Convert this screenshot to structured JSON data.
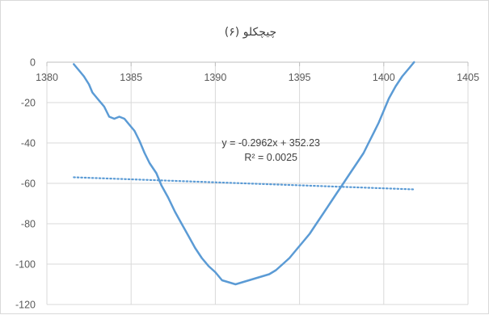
{
  "chart_data": {
    "type": "line",
    "title": "چیچکلو (۶)",
    "xlim": [
      1380,
      1405
    ],
    "ylim": [
      -120,
      0
    ],
    "x_ticks": [
      "1380",
      "1385",
      "1390",
      "1395",
      "1400",
      "1405"
    ],
    "y_ticks": [
      "0",
      "-20",
      "-40",
      "-60",
      "-80",
      "-100",
      "-120"
    ],
    "x_tick_values": [
      1380,
      1385,
      1390,
      1395,
      1400,
      1405
    ],
    "y_tick_values": [
      0,
      -20,
      -40,
      -60,
      -80,
      -100,
      -120
    ],
    "grid": true,
    "series": [
      {
        "color": "#5b9bd5",
        "x": [
          1381.6,
          1381.9,
          1382.2,
          1382.5,
          1382.7,
          1383.0,
          1383.4,
          1383.7,
          1384.0,
          1384.3,
          1384.6,
          1384.9,
          1385.2,
          1385.5,
          1385.8,
          1386.1,
          1386.5,
          1386.8,
          1387.2,
          1387.6,
          1388.0,
          1388.4,
          1388.8,
          1389.2,
          1389.6,
          1390.0,
          1390.4,
          1390.8,
          1391.2,
          1391.6,
          1392.0,
          1392.4,
          1392.8,
          1393.2,
          1393.6,
          1394.0,
          1394.4,
          1394.8,
          1395.2,
          1395.6,
          1396.0,
          1396.4,
          1396.8,
          1397.2,
          1397.6,
          1398.0,
          1398.4,
          1398.8,
          1399.1,
          1399.4,
          1399.7,
          1400.0,
          1400.3,
          1400.7,
          1401.1,
          1401.5,
          1401.8
        ],
        "y": [
          -1,
          -4,
          -7,
          -11,
          -15,
          -18,
          -22,
          -27,
          -28,
          -27,
          -28,
          -31,
          -34,
          -39,
          -45,
          -50,
          -55,
          -61,
          -67,
          -74,
          -80,
          -86,
          -92,
          -97,
          -101,
          -104,
          -108,
          -109,
          -110,
          -109,
          -108,
          -107,
          -106,
          -105,
          -103,
          -100,
          -97,
          -93,
          -89,
          -85,
          -80,
          -75,
          -70,
          -65,
          -60,
          -55,
          -50,
          -45,
          -40,
          -35,
          -30,
          -24,
          -18,
          -12,
          -7,
          -3,
          0
        ]
      },
      {
        "color": "#5b9bd5",
        "style": "dotted",
        "x": [
          1381.6,
          1401.8
        ],
        "y": [
          -57.0,
          -63.0
        ]
      }
    ],
    "annotations": [
      "y = -0.2962x + 352.23",
      "R² = 0.0025"
    ],
    "annotation_anchor": {
      "x": 1393.3,
      "y": -40
    }
  }
}
